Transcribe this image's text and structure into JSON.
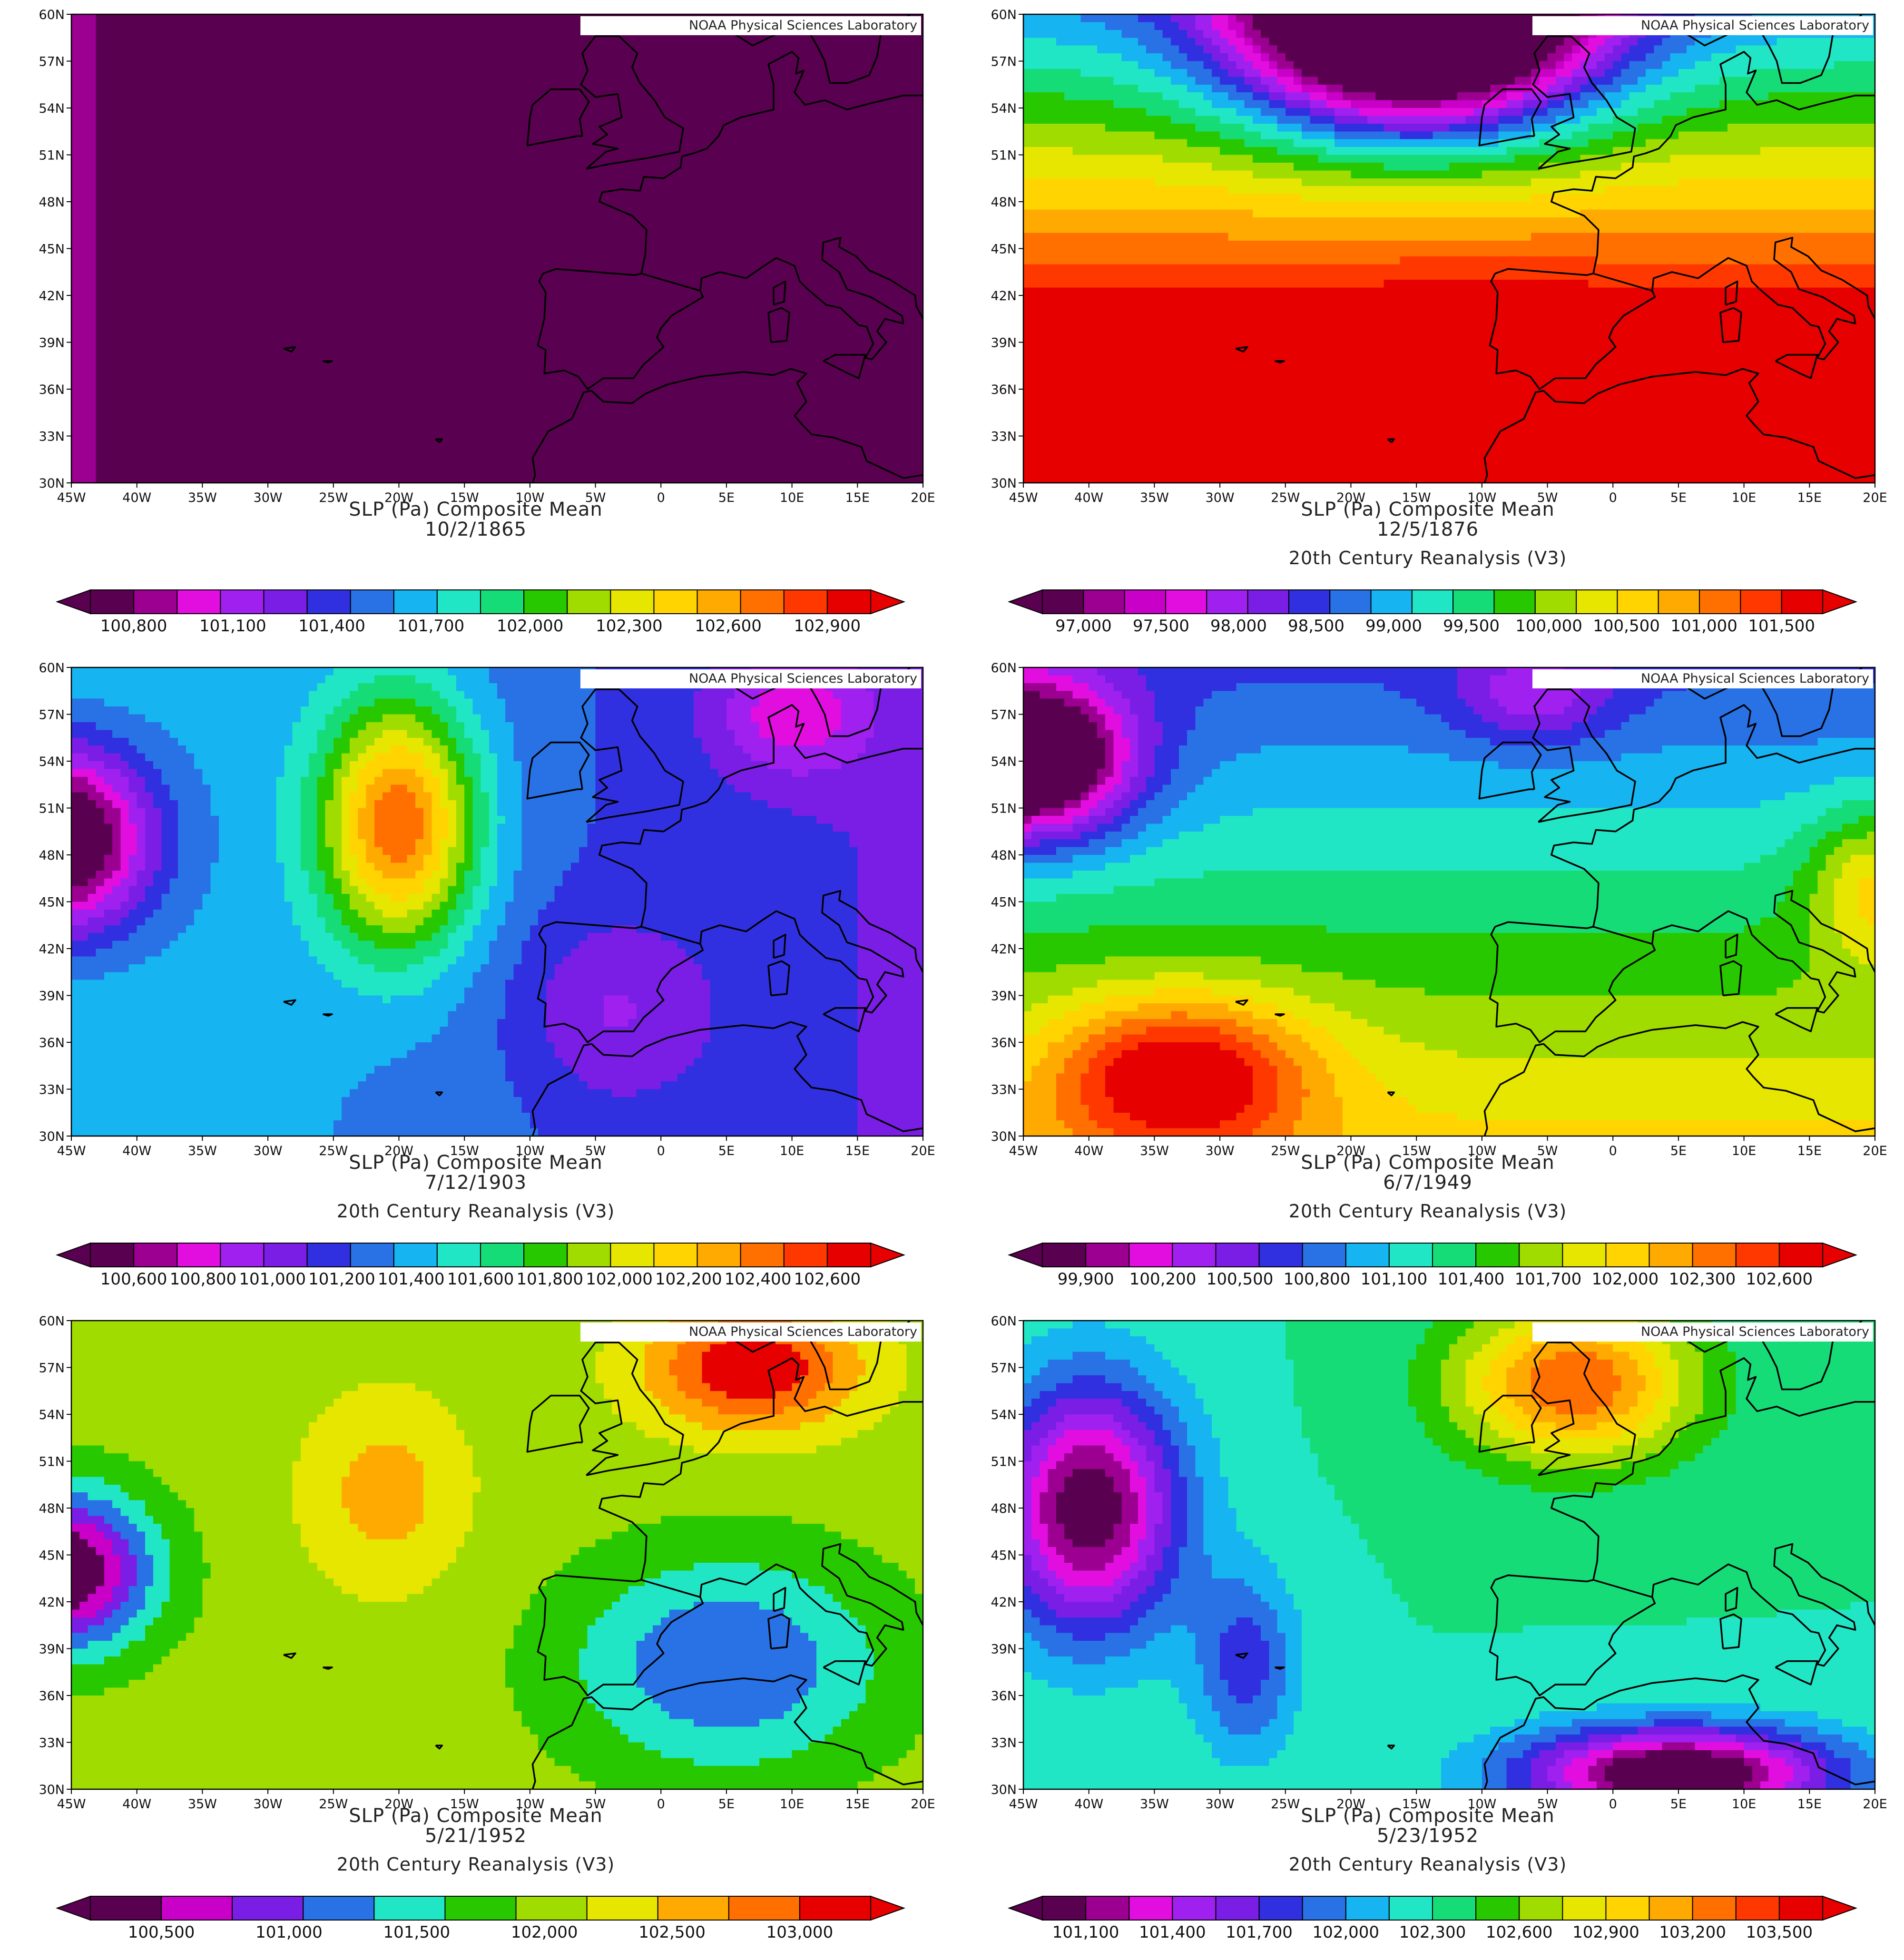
{
  "lat_ticks": [
    "60N",
    "57N",
    "54N",
    "51N",
    "48N",
    "45N",
    "42N",
    "39N",
    "36N",
    "33N",
    "30N"
  ],
  "lon_ticks": [
    "45W",
    "40W",
    "35W",
    "30W",
    "25W",
    "20W",
    "15W",
    "10W",
    "5W",
    "0",
    "5E",
    "10E",
    "15E",
    "20E"
  ],
  "colors": {
    "background": "#ffffff",
    "coastline": "#000000"
  },
  "panels": [
    {
      "credit": "NOAA Physical Sciences Laboratory",
      "title_line1": "SLP (Pa) Composite Mean",
      "title_line2": "10/2/1865",
      "colorbar_title": "",
      "colorbar_labels": [
        "100,800",
        "101,100",
        "101,400",
        "101,700",
        "102,000",
        "102,300",
        "102,600",
        "102,900"
      ],
      "palette": [
        "#5a0050",
        "#9b0090",
        "#e20ee0",
        "#a020f0",
        "#7a1ee6",
        "#3030e0",
        "#2872e6",
        "#16b4f0",
        "#20e6c6",
        "#16dc78",
        "#28c800",
        "#a0dc00",
        "#e6e600",
        "#ffd400",
        "#ffaa00",
        "#ff7000",
        "#ff3800",
        "#e60000"
      ],
      "scalar": {
        "base": 1.5,
        "lon": -0.25,
        "lat": 0.0,
        "blobs": [
          [
            -25,
            47,
            9,
            5,
            -1.2
          ],
          [
            7,
            59,
            9,
            6,
            8.5
          ],
          [
            18,
            33,
            6,
            7,
            3.0
          ],
          [
            10,
            42,
            5,
            5,
            1.0
          ]
        ]
      }
    },
    {
      "credit": "NOAA Physical Sciences Laboratory",
      "title_line1": "SLP (Pa) Composite Mean",
      "title_line2": "12/5/1876",
      "colorbar_title": "20th Century Reanalysis (V3)",
      "colorbar_labels": [
        "97,000",
        "97,500",
        "98,000",
        "98,500",
        "99,000",
        "99,500",
        "100,000",
        "100,500",
        "101,000",
        "101,500"
      ],
      "palette": [
        "#5a0050",
        "#9b0090",
        "#c800c8",
        "#e20ee0",
        "#a020f0",
        "#7a1ee6",
        "#3030e0",
        "#2872e6",
        "#16b4f0",
        "#20e6c6",
        "#16dc78",
        "#28c800",
        "#a0dc00",
        "#e6e600",
        "#ffd400",
        "#ffaa00",
        "#ff7000",
        "#ff3800",
        "#e60000"
      ],
      "scalar": {
        "base": 16.5,
        "lon": 0.0,
        "lat": -0.55,
        "blobs": [
          [
            -15,
            60,
            13,
            7,
            -19.0
          ],
          [
            -10,
            40,
            9,
            4,
            1.0
          ]
        ]
      }
    },
    {
      "credit": "NOAA Physical Sciences Laboratory",
      "title_line1": "SLP (Pa) Composite Mean",
      "title_line2": "7/12/1903",
      "colorbar_title": "20th Century Reanalysis (V3)",
      "colorbar_labels": [
        "100,600",
        "100,800",
        "101,000",
        "101,200",
        "101,400",
        "101,600",
        "101,800",
        "102,000",
        "102,200",
        "102,400",
        "102,600"
      ],
      "palette": [
        "#5a0050",
        "#9b0090",
        "#e20ee0",
        "#a020f0",
        "#7a1ee6",
        "#3030e0",
        "#2872e6",
        "#16b4f0",
        "#20e6c6",
        "#16dc78",
        "#28c800",
        "#a0dc00",
        "#e6e600",
        "#ffd400",
        "#ffaa00",
        "#ff7000",
        "#ff3800",
        "#e60000"
      ],
      "scalar": {
        "base": 8.0,
        "lon": -0.05,
        "lat": 0.0,
        "blobs": [
          [
            -46,
            49,
            7,
            6,
            -9.5
          ],
          [
            -20,
            50,
            6,
            8,
            9.0
          ],
          [
            10,
            57,
            6,
            4,
            -3.0
          ],
          [
            -4,
            38,
            7,
            6,
            -2.0
          ]
        ]
      }
    },
    {
      "credit": "NOAA Physical Sciences Laboratory",
      "title_line1": "SLP (Pa) Composite Mean",
      "title_line2": "6/7/1949",
      "colorbar_title": "20th Century Reanalysis (V3)",
      "colorbar_labels": [
        "99,900",
        "100,200",
        "100,500",
        "100,800",
        "101,100",
        "101,400",
        "101,700",
        "102,000",
        "102,300",
        "102,600"
      ],
      "palette": [
        "#5a0050",
        "#9b0090",
        "#e20ee0",
        "#a020f0",
        "#7a1ee6",
        "#3030e0",
        "#2872e6",
        "#16b4f0",
        "#20e6c6",
        "#16dc78",
        "#28c800",
        "#a0dc00",
        "#e6e600",
        "#ffd400",
        "#ffaa00",
        "#ff7000",
        "#ff3800",
        "#e60000"
      ],
      "scalar": {
        "base": 9.5,
        "lon": 0.0,
        "lat": -0.25,
        "blobs": [
          [
            -45,
            54,
            8,
            5,
            -11.0
          ],
          [
            -33,
            34,
            10,
            5,
            6.5
          ],
          [
            20,
            46,
            5,
            5,
            4.0
          ],
          [
            -6,
            58,
            6,
            3,
            -3.0
          ]
        ]
      }
    },
    {
      "credit": "NOAA Physical Sciences Laboratory",
      "title_line1": "SLP (Pa) Composite Mean",
      "title_line2": "5/21/1952",
      "colorbar_title": "20th Century Reanalysis (V3)",
      "colorbar_labels": [
        "100,500",
        "101,000",
        "101,500",
        "102,000",
        "102,500",
        "103,000"
      ],
      "palette": [
        "#5a0050",
        "#c800c8",
        "#7a1ee6",
        "#2872e6",
        "#20e6c6",
        "#28c800",
        "#a0dc00",
        "#e6e600",
        "#ffaa00",
        "#ff7000",
        "#e60000"
      ],
      "scalar": {
        "base": 6.5,
        "lon": 0.0,
        "lat": 0.0,
        "blobs": [
          [
            -46,
            44,
            7,
            5,
            -7.0
          ],
          [
            -21,
            49,
            6,
            6,
            2.0
          ],
          [
            7,
            57,
            8,
            4,
            4.5
          ],
          [
            5,
            38,
            12,
            7,
            -3.5
          ]
        ]
      }
    },
    {
      "credit": "NOAA Physical Sciences Laboratory",
      "title_line1": "SLP (Pa) Composite Mean",
      "title_line2": "5/23/1952",
      "colorbar_title": "20th Century Reanalysis (V3)",
      "colorbar_labels": [
        "101,100",
        "101,400",
        "101,700",
        "102,000",
        "102,300",
        "102,600",
        "102,900",
        "103,200",
        "103,500"
      ],
      "palette": [
        "#5a0050",
        "#9b0090",
        "#e20ee0",
        "#a020f0",
        "#7a1ee6",
        "#3030e0",
        "#2872e6",
        "#16b4f0",
        "#20e6c6",
        "#16dc78",
        "#28c800",
        "#a0dc00",
        "#e6e600",
        "#ffd400",
        "#ffaa00",
        "#ff7000",
        "#ff3800",
        "#e60000"
      ],
      "scalar": {
        "base": 9.0,
        "lon": 0.0,
        "lat": 0.0,
        "blobs": [
          [
            -40,
            48,
            7,
            8,
            -9.0
          ],
          [
            -3,
            56,
            9,
            5,
            7.0
          ],
          [
            5,
            31,
            12,
            3,
            -10.0
          ],
          [
            -28,
            38,
            4,
            6,
            -3.5
          ]
        ]
      }
    }
  ]
}
